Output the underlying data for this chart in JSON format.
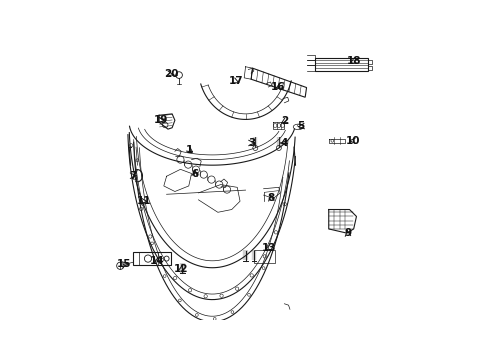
{
  "bg_color": "#ffffff",
  "lc": "#1a1a1a",
  "figsize": [
    4.9,
    3.6
  ],
  "dpi": 100,
  "labels": {
    "1": [
      0.305,
      0.415,
      0.335,
      0.39
    ],
    "2": [
      0.62,
      0.305,
      0.63,
      0.28
    ],
    "3": [
      0.53,
      0.355,
      0.505,
      0.36
    ],
    "4": [
      0.62,
      0.355,
      0.595,
      0.36
    ],
    "5": [
      0.7,
      0.3,
      0.68,
      0.3
    ],
    "6": [
      0.285,
      0.49,
      0.295,
      0.52
    ],
    "7": [
      0.065,
      0.48,
      0.08,
      0.48
    ],
    "8": [
      0.6,
      0.575,
      0.605,
      0.545
    ],
    "9": [
      0.85,
      0.615,
      0.85,
      0.65
    ],
    "10": [
      0.87,
      0.35,
      0.845,
      0.35
    ],
    "11": [
      0.11,
      0.565,
      0.14,
      0.57
    ],
    "12": [
      0.24,
      0.76,
      0.255,
      0.79
    ],
    "13": [
      0.59,
      0.72,
      0.565,
      0.72
    ],
    "14": [
      0.165,
      0.74,
      0.165,
      0.77
    ],
    "15": [
      0.042,
      0.8,
      0.065,
      0.8
    ],
    "16": [
      0.595,
      0.15,
      0.6,
      0.175
    ],
    "17": [
      0.415,
      0.12,
      0.43,
      0.145
    ],
    "18": [
      0.87,
      0.1,
      0.87,
      0.13
    ],
    "19": [
      0.17,
      0.27,
      0.18,
      0.29
    ],
    "20": [
      0.197,
      0.11,
      0.205,
      0.14
    ]
  }
}
